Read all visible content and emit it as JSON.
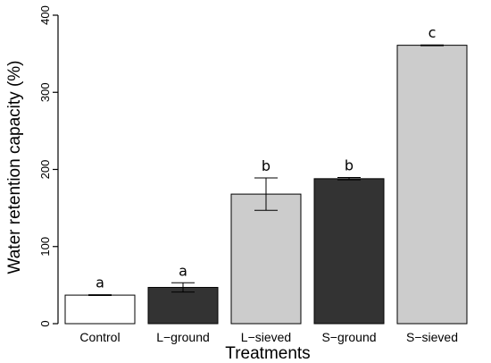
{
  "chart_data": {
    "type": "bar",
    "xlabel": "Treatments",
    "ylabel": "Water retention capacity (%)",
    "ylim": [
      0,
      400
    ],
    "yticks": [
      0,
      100,
      200,
      300,
      400
    ],
    "ytick_labels": [
      "0",
      "100",
      "200",
      "300",
      "400"
    ],
    "grid": false,
    "categories": [
      "Control",
      "L−ground",
      "L−sieved",
      "S−ground",
      "S−sieved"
    ],
    "values": [
      37,
      47,
      168,
      188,
      361
    ],
    "error": [
      0.5,
      6,
      21,
      1.5,
      0.5
    ],
    "significance_letters": [
      "a",
      "a",
      "b",
      "b",
      "c"
    ],
    "bar_colors": [
      "#ffffff",
      "#333333",
      "#cccccc",
      "#333333",
      "#cccccc"
    ]
  }
}
